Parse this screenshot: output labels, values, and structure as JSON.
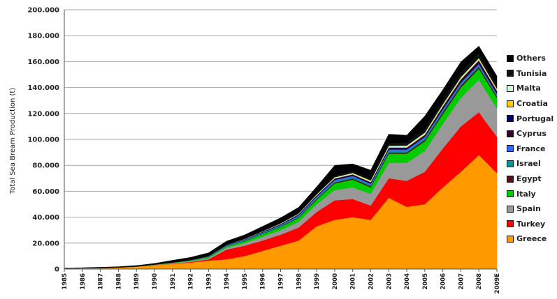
{
  "chart_data": {
    "type": "area",
    "stacked": true,
    "ylabel": "Total Sea Bream Production (t)",
    "xlabel": "",
    "ylim": [
      0,
      200000
    ],
    "y_ticks": [
      "0",
      "20.000",
      "40.000",
      "60.000",
      "80.000",
      "100.000",
      "120.000",
      "140.000",
      "160.000",
      "180.000",
      "200.000"
    ],
    "grid": true,
    "legend_position": "right",
    "categories": [
      "1985",
      "1986",
      "1987",
      "1988",
      "1989",
      "1990",
      "1991",
      "1992",
      "1993",
      "1994",
      "1995",
      "1996",
      "1997",
      "1998",
      "1999",
      "2000",
      "2001",
      "2002",
      "2003",
      "2004",
      "2005",
      "2006",
      "2007",
      "2008",
      "2009E"
    ],
    "series": [
      {
        "name": "Greece",
        "color": "#ff9900",
        "values": [
          500,
          700,
          900,
          1200,
          1800,
          3000,
          4000,
          5000,
          6500,
          7500,
          10000,
          14000,
          18000,
          22000,
          33000,
          38000,
          40000,
          38000,
          55000,
          48000,
          50000,
          63000,
          75000,
          88000,
          74000
        ]
      },
      {
        "name": "Turkey",
        "color": "#ff0000",
        "values": [
          0,
          0,
          0,
          0,
          0,
          0,
          200,
          500,
          1000,
          7500,
          8000,
          8000,
          8500,
          10000,
          11000,
          15000,
          14000,
          11000,
          15000,
          20000,
          25000,
          30000,
          35000,
          33000,
          28000
        ]
      },
      {
        "name": "Spain",
        "color": "#999999",
        "values": [
          0,
          0,
          0,
          100,
          100,
          200,
          400,
          600,
          1000,
          1500,
          2000,
          3000,
          3500,
          4500,
          6000,
          8000,
          9000,
          9000,
          12000,
          14000,
          16000,
          19000,
          22000,
          25000,
          22000
        ]
      },
      {
        "name": "Italy",
        "color": "#00cc00",
        "values": [
          0,
          0,
          0,
          0,
          100,
          200,
          300,
          500,
          700,
          1000,
          1500,
          2000,
          2500,
          3000,
          3500,
          5000,
          6000,
          5000,
          7000,
          7000,
          7500,
          7500,
          8000,
          8500,
          8000
        ]
      },
      {
        "name": "Egypt",
        "color": "#5a0d0d",
        "values": [
          0,
          0,
          0,
          0,
          0,
          0,
          0,
          0,
          0,
          0,
          200,
          300,
          400,
          500,
          700,
          800,
          900,
          900,
          1000,
          1000,
          1200,
          1500,
          1500,
          1500,
          1200
        ]
      },
      {
        "name": "Israel",
        "color": "#009999",
        "values": [
          0,
          0,
          0,
          0,
          0,
          100,
          100,
          200,
          300,
          400,
          500,
          600,
          700,
          800,
          900,
          1000,
          1000,
          1000,
          1200,
          1200,
          1200,
          1200,
          1200,
          1200,
          1000
        ]
      },
      {
        "name": "France",
        "color": "#3366ff",
        "values": [
          0,
          0,
          0,
          0,
          0,
          0,
          100,
          100,
          200,
          300,
          300,
          400,
          500,
          600,
          800,
          900,
          900,
          900,
          1000,
          1000,
          1000,
          1000,
          1000,
          1000,
          900
        ]
      },
      {
        "name": "Cyprus",
        "color": "#330033",
        "values": [
          0,
          0,
          0,
          0,
          0,
          0,
          0,
          0,
          100,
          200,
          200,
          300,
          300,
          400,
          500,
          600,
          700,
          700,
          800,
          900,
          1000,
          1500,
          1800,
          2000,
          1800
        ]
      },
      {
        "name": "Portugal",
        "color": "#000066",
        "values": [
          0,
          0,
          0,
          0,
          0,
          0,
          0,
          100,
          100,
          200,
          200,
          300,
          300,
          400,
          400,
          500,
          500,
          500,
          600,
          600,
          600,
          700,
          700,
          700,
          600
        ]
      },
      {
        "name": "Croatia",
        "color": "#ffcc00",
        "values": [
          0,
          0,
          0,
          0,
          0,
          0,
          0,
          0,
          0,
          0,
          100,
          100,
          200,
          200,
          300,
          400,
          400,
          500,
          600,
          600,
          700,
          700,
          800,
          800,
          700
        ]
      },
      {
        "name": "Malta",
        "color": "#ccffcc",
        "values": [
          0,
          0,
          0,
          0,
          0,
          0,
          0,
          0,
          100,
          100,
          200,
          200,
          300,
          400,
          500,
          600,
          700,
          800,
          900,
          900,
          1000,
          1000,
          1000,
          1000,
          900
        ]
      },
      {
        "name": "Tunisia",
        "color": "#111111",
        "values": [
          0,
          0,
          0,
          0,
          0,
          0,
          0,
          0,
          0,
          0,
          100,
          200,
          300,
          500,
          800,
          1200,
          1500,
          1500,
          2000,
          2500,
          3000,
          3500,
          4000,
          4000,
          3500
        ]
      },
      {
        "name": "Others",
        "color": "#000000",
        "values": [
          0,
          300,
          500,
          500,
          700,
          800,
          1600,
          2000,
          2500,
          2800,
          3000,
          3500,
          4000,
          4300,
          5000,
          8000,
          5500,
          6500,
          6900,
          5500,
          9800,
          7700,
          7800,
          5300,
          6300
        ]
      }
    ]
  }
}
